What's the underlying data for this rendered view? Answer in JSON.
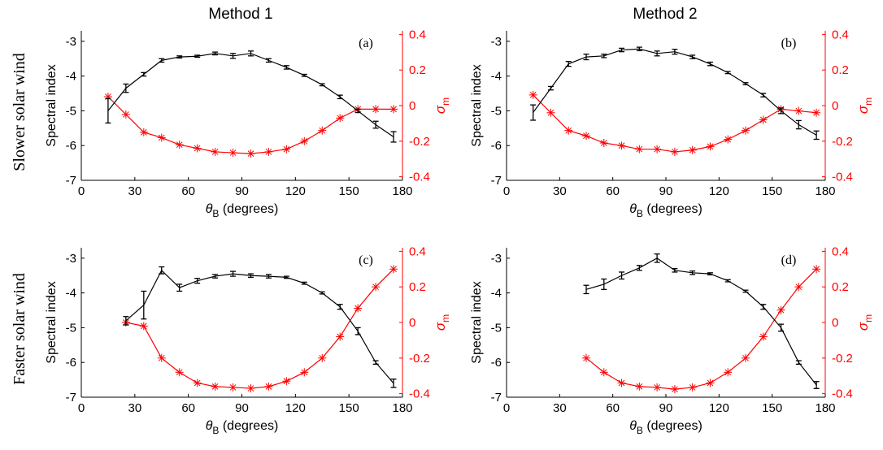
{
  "column_titles": [
    "Method 1",
    "Method 2"
  ],
  "row_titles": [
    "Slower solar wind",
    "Faster solar wind"
  ],
  "colors": {
    "left_axis": "#000000",
    "right_axis": "#ff0000"
  },
  "chart_data": [
    {
      "type": "line",
      "panel_label": "(a)",
      "xlabel": "θ_B (degrees)",
      "xlabel_main": "θ",
      "xlabel_sub": "B",
      "xlabel_tail": " (degrees)",
      "xlim": [
        0,
        180
      ],
      "xticks": [
        0,
        30,
        60,
        90,
        120,
        150,
        180
      ],
      "ylabel": "Spectral index",
      "ylim": [
        -7,
        -2.7
      ],
      "yticks": [
        -7,
        -6,
        -5,
        -4,
        -3
      ],
      "y2label_main": "σ",
      "y2label_sub": "m",
      "y2lim": [
        -0.42,
        0.42
      ],
      "y2ticks": [
        -0.4,
        -0.2,
        0,
        0.2,
        0.4
      ],
      "grid": false,
      "series": [
        {
          "axis": "left",
          "color": "#000000",
          "marker": "errorbar",
          "x": [
            15,
            25,
            35,
            45,
            55,
            65,
            75,
            85,
            95,
            105,
            115,
            125,
            135,
            145,
            155,
            165,
            175
          ],
          "y": [
            -5.0,
            -4.35,
            -3.95,
            -3.55,
            -3.45,
            -3.43,
            -3.35,
            -3.42,
            -3.35,
            -3.55,
            -3.75,
            -3.98,
            -4.25,
            -4.6,
            -5.0,
            -5.4,
            -5.75
          ],
          "err": [
            0.35,
            0.12,
            0.05,
            0.05,
            0.03,
            0.03,
            0.04,
            0.07,
            0.07,
            0.05,
            0.05,
            0.03,
            0.03,
            0.05,
            0.05,
            0.1,
            0.15
          ]
        },
        {
          "axis": "right",
          "color": "#ff0000",
          "marker": "asterisk",
          "x": [
            15,
            25,
            35,
            45,
            55,
            65,
            75,
            85,
            95,
            105,
            115,
            125,
            135,
            145,
            155,
            165,
            175
          ],
          "y": [
            0.05,
            -0.05,
            -0.15,
            -0.18,
            -0.22,
            -0.24,
            -0.26,
            -0.265,
            -0.27,
            -0.26,
            -0.245,
            -0.2,
            -0.14,
            -0.07,
            -0.02,
            -0.02,
            -0.02
          ]
        }
      ]
    },
    {
      "type": "line",
      "panel_label": "(b)",
      "xlabel": "θ_B (degrees)",
      "xlabel_main": "θ",
      "xlabel_sub": "B",
      "xlabel_tail": " (degrees)",
      "xlim": [
        0,
        180
      ],
      "xticks": [
        0,
        30,
        60,
        90,
        120,
        150,
        180
      ],
      "ylabel": "Spectral index",
      "ylim": [
        -7,
        -2.7
      ],
      "yticks": [
        -7,
        -6,
        -5,
        -4,
        -3
      ],
      "y2label_main": "σ",
      "y2label_sub": "m",
      "y2lim": [
        -0.42,
        0.42
      ],
      "y2ticks": [
        -0.4,
        -0.2,
        0,
        0.2,
        0.4
      ],
      "grid": false,
      "series": [
        {
          "axis": "left",
          "color": "#000000",
          "marker": "errorbar",
          "x": [
            15,
            25,
            35,
            45,
            55,
            65,
            75,
            85,
            95,
            105,
            115,
            125,
            135,
            145,
            155,
            165,
            175
          ],
          "y": [
            -5.05,
            -4.35,
            -3.65,
            -3.45,
            -3.42,
            -3.25,
            -3.22,
            -3.35,
            -3.3,
            -3.45,
            -3.65,
            -3.9,
            -4.22,
            -4.55,
            -5.0,
            -5.4,
            -5.7
          ],
          "err": [
            0.22,
            0.05,
            0.07,
            0.08,
            0.05,
            0.05,
            0.05,
            0.07,
            0.07,
            0.05,
            0.05,
            0.03,
            0.03,
            0.05,
            0.08,
            0.12,
            0.12
          ]
        },
        {
          "axis": "right",
          "color": "#ff0000",
          "marker": "asterisk",
          "x": [
            15,
            25,
            35,
            45,
            55,
            65,
            75,
            85,
            95,
            105,
            115,
            125,
            135,
            145,
            155,
            165,
            175
          ],
          "y": [
            0.06,
            -0.04,
            -0.14,
            -0.17,
            -0.21,
            -0.225,
            -0.245,
            -0.245,
            -0.26,
            -0.25,
            -0.23,
            -0.19,
            -0.14,
            -0.08,
            -0.02,
            -0.03,
            -0.04
          ]
        }
      ]
    },
    {
      "type": "line",
      "panel_label": "(c)",
      "xlabel": "θ_B (degrees)",
      "xlabel_main": "θ",
      "xlabel_sub": "B",
      "xlabel_tail": " (degrees)",
      "xlim": [
        0,
        180
      ],
      "xticks": [
        0,
        30,
        60,
        90,
        120,
        150,
        180
      ],
      "ylabel": "Spectral index",
      "ylim": [
        -7,
        -2.7
      ],
      "yticks": [
        -7,
        -6,
        -5,
        -4,
        -3
      ],
      "y2label_main": "σ",
      "y2label_sub": "m",
      "y2lim": [
        -0.42,
        0.42
      ],
      "y2ticks": [
        -0.4,
        -0.2,
        0,
        0.2,
        0.4
      ],
      "grid": false,
      "series": [
        {
          "axis": "left",
          "color": "#000000",
          "marker": "errorbar",
          "x": [
            25,
            35,
            45,
            55,
            65,
            75,
            85,
            95,
            105,
            115,
            125,
            135,
            145,
            155,
            165,
            175
          ],
          "y": [
            -4.8,
            -4.35,
            -3.35,
            -3.85,
            -3.65,
            -3.52,
            -3.45,
            -3.5,
            -3.52,
            -3.55,
            -3.72,
            -4.0,
            -4.4,
            -5.1,
            -6.0,
            -6.6
          ],
          "err": [
            0.12,
            0.4,
            0.1,
            0.1,
            0.07,
            0.05,
            0.07,
            0.05,
            0.05,
            0.03,
            0.03,
            0.03,
            0.07,
            0.1,
            0.05,
            0.12
          ]
        },
        {
          "axis": "right",
          "color": "#ff0000",
          "marker": "asterisk",
          "x": [
            25,
            35,
            45,
            55,
            65,
            75,
            85,
            95,
            105,
            115,
            125,
            135,
            145,
            155,
            165,
            175
          ],
          "y": [
            0.0,
            -0.02,
            -0.2,
            -0.28,
            -0.34,
            -0.36,
            -0.365,
            -0.37,
            -0.36,
            -0.33,
            -0.28,
            -0.2,
            -0.08,
            0.08,
            0.2,
            0.3
          ]
        }
      ]
    },
    {
      "type": "line",
      "panel_label": "(d)",
      "xlabel": "θ_B (degrees)",
      "xlabel_main": "θ",
      "xlabel_sub": "B",
      "xlabel_tail": " (degrees)",
      "xlim": [
        0,
        180
      ],
      "xticks": [
        0,
        30,
        60,
        90,
        120,
        150,
        180
      ],
      "ylabel": "Spectral index",
      "ylim": [
        -7,
        -2.7
      ],
      "yticks": [
        -7,
        -6,
        -5,
        -4,
        -3
      ],
      "y2label_main": "σ",
      "y2label_sub": "m",
      "y2lim": [
        -0.42,
        0.42
      ],
      "y2ticks": [
        -0.4,
        -0.2,
        0,
        0.2,
        0.4
      ],
      "grid": false,
      "series": [
        {
          "axis": "left",
          "color": "#000000",
          "marker": "errorbar",
          "x": [
            45,
            55,
            65,
            75,
            85,
            95,
            105,
            115,
            125,
            135,
            145,
            155,
            165,
            175
          ],
          "y": [
            -3.9,
            -3.75,
            -3.5,
            -3.28,
            -3.0,
            -3.35,
            -3.42,
            -3.45,
            -3.65,
            -3.95,
            -4.4,
            -5.0,
            -6.0,
            -6.65
          ],
          "err": [
            0.12,
            0.15,
            0.1,
            0.07,
            0.12,
            0.05,
            0.05,
            0.03,
            0.03,
            0.03,
            0.07,
            0.1,
            0.05,
            0.1
          ]
        },
        {
          "axis": "right",
          "color": "#ff0000",
          "marker": "asterisk",
          "x": [
            45,
            55,
            65,
            75,
            85,
            95,
            105,
            115,
            125,
            135,
            145,
            155,
            165,
            175
          ],
          "y": [
            -0.2,
            -0.28,
            -0.34,
            -0.36,
            -0.365,
            -0.375,
            -0.365,
            -0.34,
            -0.28,
            -0.2,
            -0.08,
            0.07,
            0.2,
            0.3
          ]
        }
      ]
    }
  ]
}
